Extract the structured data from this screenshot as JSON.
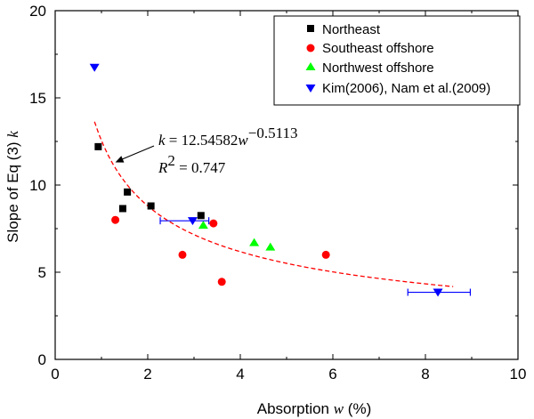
{
  "chart_data": {
    "type": "scatter",
    "xlabel_prefix": "Absorption ",
    "xlabel_var": "w",
    "xlabel_suffix": " (%)",
    "ylabel_prefix": "Slope of Eq (3) ",
    "ylabel_var": "k",
    "xlim": [
      0,
      10
    ],
    "ylim": [
      0,
      20
    ],
    "xticks": [
      "0",
      "2",
      "4",
      "6",
      "8",
      "10"
    ],
    "yticks": [
      "0",
      "5",
      "10",
      "15",
      "20"
    ],
    "xtick_values": [
      0,
      2,
      4,
      6,
      8,
      10
    ],
    "ytick_values": [
      0,
      5,
      10,
      15,
      20
    ],
    "series": [
      {
        "name": "Northeast",
        "marker": "square",
        "color": "#000000",
        "points": [
          {
            "x": 0.93,
            "y": 12.2
          },
          {
            "x": 1.46,
            "y": 8.65
          },
          {
            "x": 1.56,
            "y": 9.6
          },
          {
            "x": 2.07,
            "y": 8.8
          },
          {
            "x": 3.15,
            "y": 8.25
          }
        ]
      },
      {
        "name": "Southeast offshore",
        "marker": "circle",
        "color": "#ff0000",
        "points": [
          {
            "x": 1.3,
            "y": 8.0
          },
          {
            "x": 2.75,
            "y": 6.0
          },
          {
            "x": 3.42,
            "y": 7.8
          },
          {
            "x": 3.6,
            "y": 4.45
          },
          {
            "x": 5.85,
            "y": 6.0
          }
        ]
      },
      {
        "name": "Northwest offshore",
        "marker": "triangle-up",
        "color": "#00ff00",
        "points": [
          {
            "x": 3.2,
            "y": 7.7
          },
          {
            "x": 4.3,
            "y": 6.7
          },
          {
            "x": 4.65,
            "y": 6.45
          }
        ]
      },
      {
        "name": "Kim(2006), Nam et al.(2009)",
        "marker": "triangle-down",
        "color": "#0000ff",
        "points": [
          {
            "x": 0.85,
            "y": 16.75
          },
          {
            "x": 2.97,
            "y": 7.95,
            "xerr": [
              0.7,
              0.35
            ]
          },
          {
            "x": 8.27,
            "y": 3.85,
            "xerr": [
              0.65,
              0.7
            ]
          }
        ]
      }
    ],
    "fit": {
      "coef": 12.54582,
      "exponent": -0.5113,
      "x_range": [
        0.85,
        8.6
      ],
      "color": "#ff0000",
      "style": "dashed"
    },
    "annotation": {
      "eq_lhs": "k",
      "eq_mid": " = 12.54582",
      "eq_var": "w",
      "eq_exp": "−0.5113",
      "r2_var": "R",
      "r2_exp": "2",
      "r2_val": " = 0.747",
      "arrow_target": {
        "x": 1.3,
        "y": 11.3
      }
    },
    "legend_position": "top-right",
    "grid": false
  }
}
